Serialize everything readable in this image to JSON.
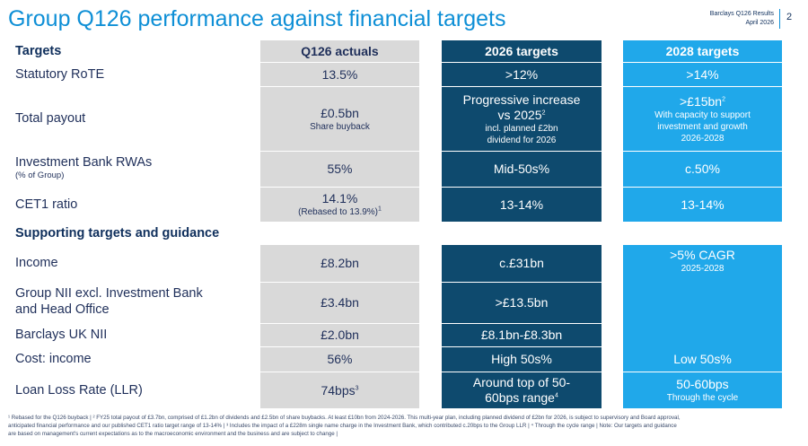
{
  "header": {
    "title": "Group Q126 performance against financial targets",
    "report_name": "Barclays Q126 Results",
    "report_date": "April 2026",
    "page_number": "2"
  },
  "columns": {
    "label_header": "Targets",
    "actuals_header": "Q126 actuals",
    "t2026_header": "2026 targets",
    "t2028_header": "2028 targets"
  },
  "rows": {
    "rote": {
      "label": "Statutory RoTE",
      "actual": "13.5%",
      "t2026": ">12%",
      "t2028": ">14%"
    },
    "payout": {
      "label": "Total payout",
      "actual": "£0.5bn",
      "actual_sub": "Share buyback",
      "t2026_l1": "Progressive increase",
      "t2026_l2": "vs 2025",
      "t2026_sup": "2",
      "t2026_sub1": "incl. planned £2bn",
      "t2026_sub2": "dividend for 2026",
      "t2028": ">£15bn",
      "t2028_sup": "2",
      "t2028_sub1": "With capacity to support",
      "t2028_sub2": "investment and growth",
      "t2028_sub3": "2026-2028"
    },
    "ibrwa": {
      "label": "Investment Bank RWAs",
      "label_sub": "(% of Group)",
      "actual": "55%",
      "t2026": "Mid-50s%",
      "t2028": "c.50%"
    },
    "cet1": {
      "label": "CET1 ratio",
      "actual": "14.1%",
      "actual_sub": "(Rebased to 13.9%)",
      "actual_sup": "1",
      "t2026": "13-14%",
      "t2028": "13-14%"
    }
  },
  "supporting": {
    "heading": "Supporting targets and guidance",
    "income": {
      "label": "Income",
      "actual": "£8.2bn",
      "t2026": "c.£31bn",
      "t2028": ">5% CAGR",
      "t2028_sub": "2025-2028"
    },
    "nii_excl": {
      "label_l1": "Group NII excl. Investment Bank",
      "label_l2": "and Head Office",
      "actual": "£3.4bn",
      "t2026": ">£13.5bn"
    },
    "uk_nii": {
      "label": "Barclays UK NII",
      "actual": "£2.0bn",
      "t2026": "£8.1bn-£8.3bn"
    },
    "cost_income": {
      "label": "Cost: income",
      "actual": "56%",
      "t2026": "High 50s%",
      "t2028": "Low 50s%"
    },
    "llr": {
      "label": "Loan Loss Rate (LLR)",
      "actual": "74bps",
      "actual_sup": "3",
      "t2026_l1": "Around top of 50-",
      "t2026_l2": "60bps range",
      "t2026_sup": "4",
      "t2028": "50-60bps",
      "t2028_sub": "Through the cycle"
    }
  },
  "footnotes": {
    "line1": "¹ Rebased for the Q126 buyback | ² FY25 total payout of £3.7bn, comprised of £1.2bn of dividends and £2.5bn of share buybacks. At least £10bn from 2024-2026. This multi-year plan, including planned dividend of £2bn for 2026, is subject to supervisory and Board approval,",
    "line2": "anticipated financial performance and our published CET1 ratio target range of 13-14% | ³ Includes the impact of a £228m single name charge in the Investment Bank, which contributed c.20bps to the Group LLR | ⁴ Through the cycle range | Note: Our targets and guidance",
    "line3": "are based on management's current expectations as to the macroeconomic environment and the business and are subject to change |"
  },
  "colors": {
    "title_blue": "#0e8fd6",
    "grey_column": "#d9d9d9",
    "navy_column": "#0e4a6e",
    "sky_column": "#20a8ea",
    "text_navy": "#1f2f5a"
  }
}
